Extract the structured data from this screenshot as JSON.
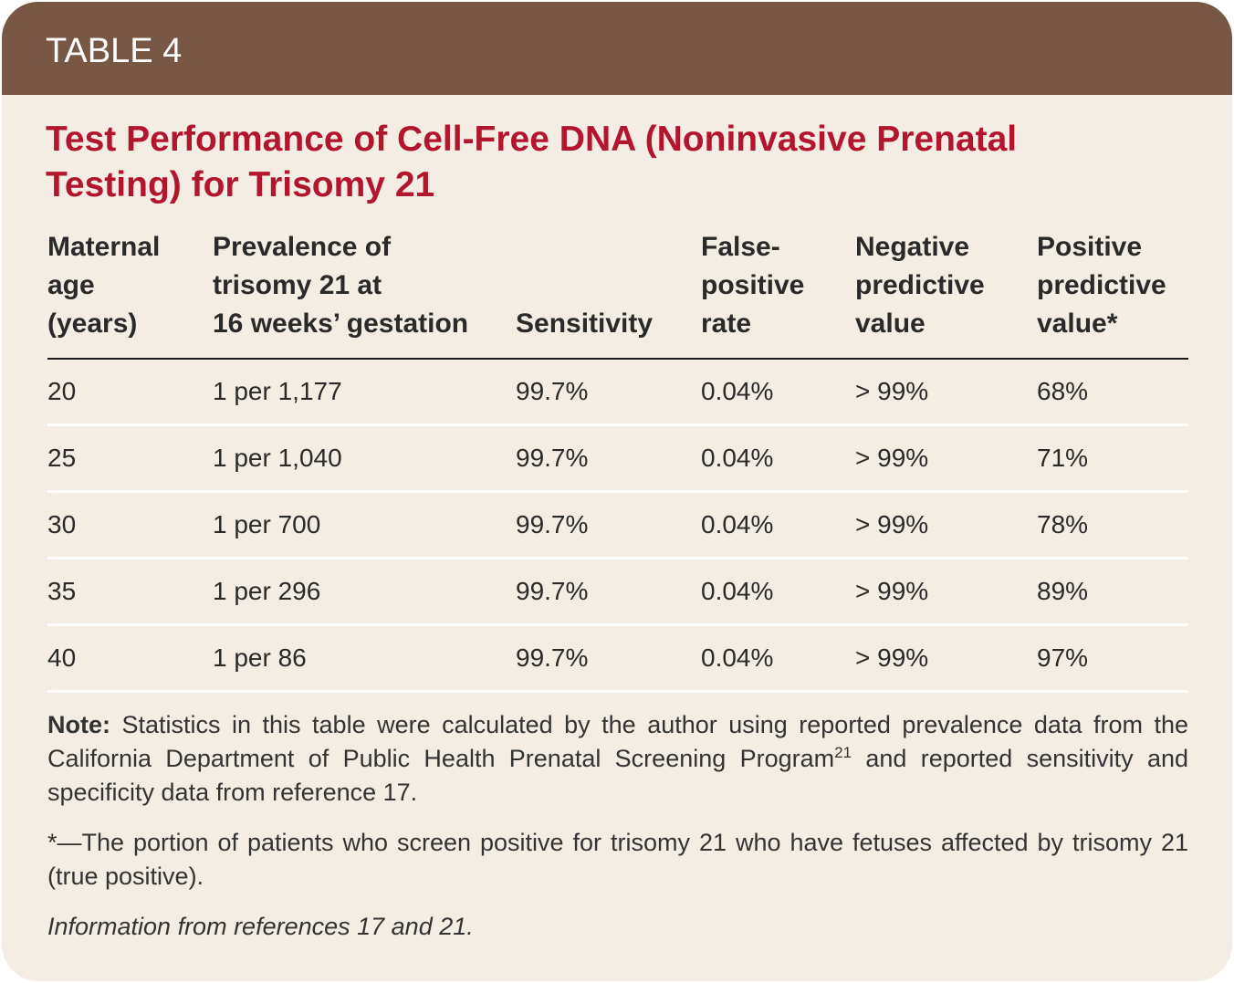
{
  "header": {
    "label": "TABLE 4"
  },
  "title": "Test Performance of Cell-Free DNA (Noninvasive Prenatal Testing) for Trisomy 21",
  "table": {
    "columns": [
      [
        "Maternal",
        "age",
        "(years)"
      ],
      [
        "Prevalence of",
        "trisomy 21 at",
        "16 weeks’ gestation"
      ],
      [
        "Sensitivity"
      ],
      [
        "False-",
        "positive",
        "rate"
      ],
      [
        "Negative",
        "predictive",
        "value"
      ],
      [
        "Positive",
        "predictive",
        "value*"
      ]
    ],
    "rows": [
      [
        "20",
        "1 per 1,177",
        "99.7%",
        "0.04%",
        "> 99%",
        "68%"
      ],
      [
        "25",
        "1 per 1,040",
        "99.7%",
        "0.04%",
        "> 99%",
        "71%"
      ],
      [
        "30",
        "1 per 700",
        "99.7%",
        "0.04%",
        "> 99%",
        "78%"
      ],
      [
        "35",
        "1 per 296",
        "99.7%",
        "0.04%",
        "> 99%",
        "89%"
      ],
      [
        "40",
        "1 per 86",
        "99.7%",
        "0.04%",
        "> 99%",
        "97%"
      ]
    ]
  },
  "note": {
    "label": "Note:",
    "text": "Statistics in this table were calculated by the author using reported prevalence data from the California Department of Public Health Prenatal Screening Program",
    "superscript": "21",
    "text_after": "and reported sensitivity and specificity data from reference 17."
  },
  "footnote": "*—The portion of patients who screen positive for trisomy 21 who have fetuses affected by trisomy 21 (true positive).",
  "source": "Information from references 17 and 21."
}
